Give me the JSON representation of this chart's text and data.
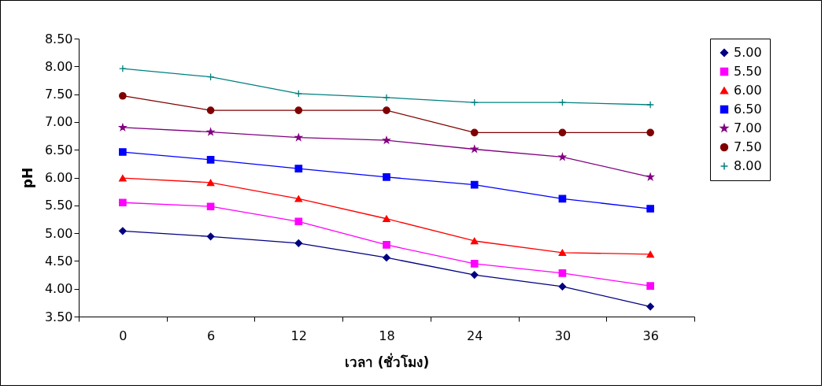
{
  "chart_data": {
    "type": "line",
    "xlabel": "เวลา (ชั่วโมง)",
    "ylabel": "pH",
    "categories": [
      "0",
      "6",
      "12",
      "18",
      "24",
      "30",
      "36"
    ],
    "ylim": [
      3.5,
      8.5
    ],
    "yticks": [
      {
        "value": 3.5,
        "label": "3.50"
      },
      {
        "value": 4,
        "label": "4.00"
      },
      {
        "value": 4.5,
        "label": "4.50"
      },
      {
        "value": 5,
        "label": "5.00"
      },
      {
        "value": 5.5,
        "label": "5.50"
      },
      {
        "value": 6,
        "label": "6.00"
      },
      {
        "value": 6.5,
        "label": "6.50"
      },
      {
        "value": 7,
        "label": "7.00"
      },
      {
        "value": 7.5,
        "label": "7.50"
      },
      {
        "value": 8,
        "label": "8.00"
      },
      {
        "value": 8.5,
        "label": "8.50"
      }
    ],
    "grid": false,
    "legend": "right",
    "line_style": "solid",
    "series": [
      {
        "name": "5.00",
        "color": "#000080",
        "marker": "diamond",
        "values": [
          5.04,
          4.94,
          4.82,
          4.56,
          4.25,
          4.04,
          3.68
        ]
      },
      {
        "name": "5.50",
        "color": "#ff00ff",
        "marker": "square",
        "values": [
          5.55,
          5.48,
          5.21,
          4.79,
          4.45,
          4.28,
          4.05
        ]
      },
      {
        "name": "6.00",
        "color": "#ff0000",
        "marker": "triangle",
        "values": [
          5.99,
          5.91,
          5.62,
          5.26,
          4.86,
          4.65,
          4.62
        ]
      },
      {
        "name": "6.50",
        "color": "#0000ff",
        "marker": "square",
        "values": [
          6.46,
          6.32,
          6.16,
          6.01,
          5.87,
          5.62,
          5.44
        ]
      },
      {
        "name": "7.00",
        "color": "#800080",
        "marker": "star",
        "values": [
          6.9,
          6.82,
          6.72,
          6.67,
          6.51,
          6.37,
          6.01
        ]
      },
      {
        "name": "7.50",
        "color": "#800000",
        "marker": "circle",
        "values": [
          7.47,
          7.21,
          7.21,
          7.21,
          6.81,
          6.81,
          6.81
        ]
      },
      {
        "name": "8.00",
        "color": "#008080",
        "marker": "cross",
        "values": [
          7.96,
          7.81,
          7.51,
          7.44,
          7.35,
          7.35,
          7.31
        ]
      }
    ]
  }
}
